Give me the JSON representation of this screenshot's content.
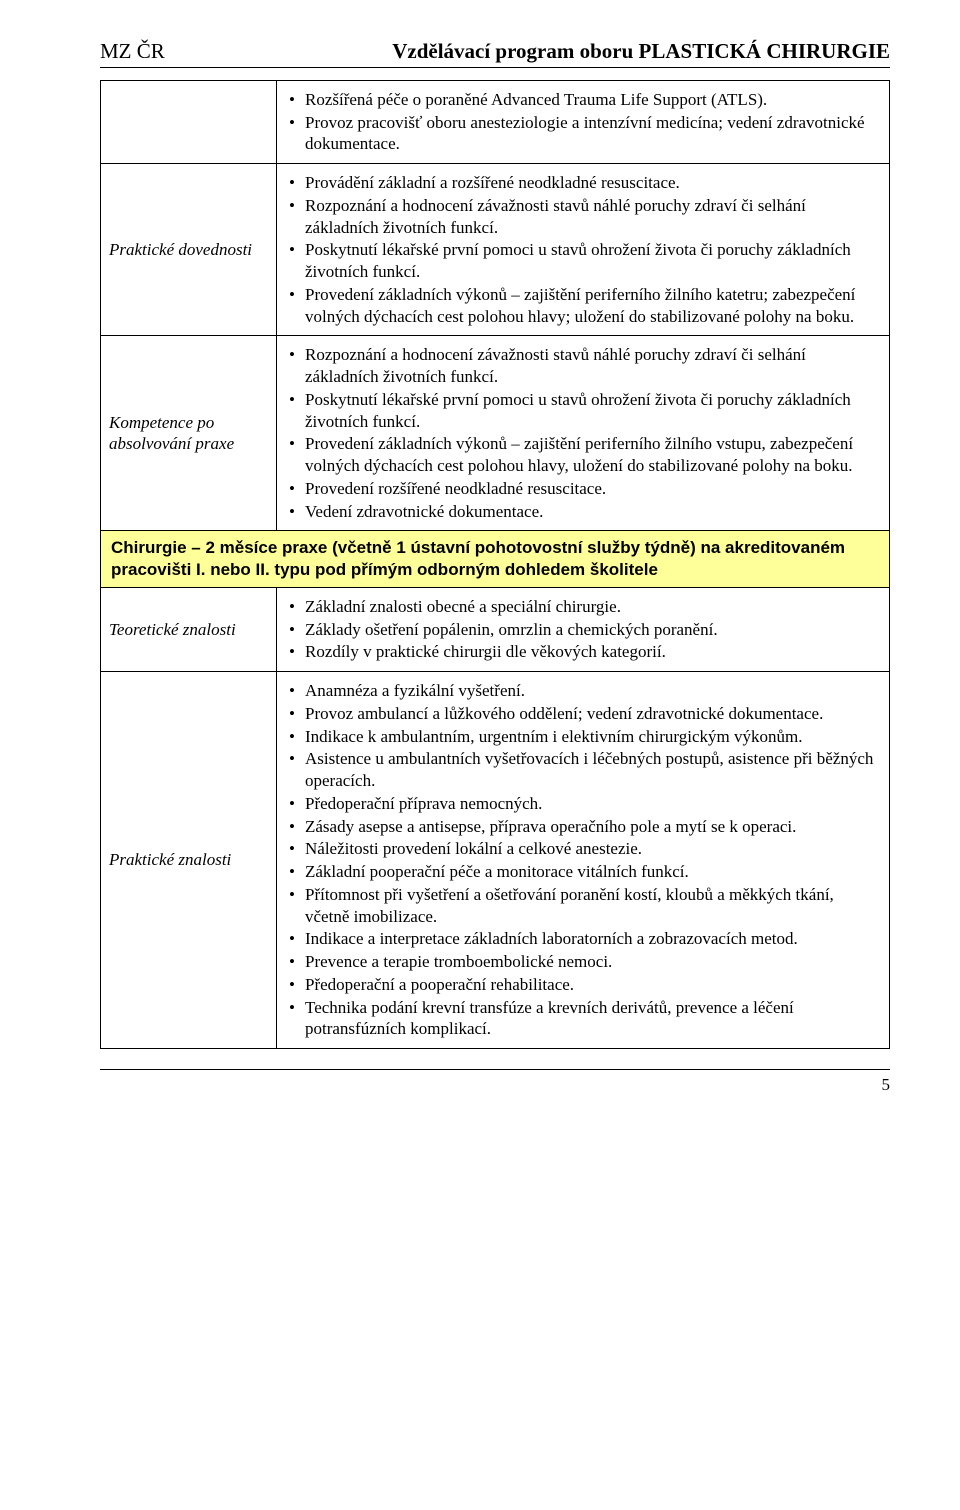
{
  "header": {
    "left": "MZ ČR",
    "right": "Vzdělávací program oboru PLASTICKÁ CHIRURGIE"
  },
  "colors": {
    "highlight_bg": "#ffff99",
    "border": "#000000",
    "text": "#000000",
    "page_bg": "#ffffff"
  },
  "rows": [
    {
      "label": "",
      "items": [
        "Rozšířená péče o poraněné Advanced Trauma Life Support (ATLS).",
        "Provoz pracovišť oboru anesteziologie a intenzívní medicína; vedení zdravotnické dokumentace."
      ]
    },
    {
      "label": "Praktické dovednosti",
      "items": [
        "Provádění základní a rozšířené neodkladné resuscitace.",
        "Rozpoznání a hodnocení závažnosti stavů náhlé poruchy zdraví či selhání základních životních funkcí.",
        "Poskytnutí lékařské první pomoci u stavů ohrožení života či poruchy základních životních funkcí.",
        "Provedení základních výkonů – zajištění periferního žilního katetru; zabezpečení volných dýchacích cest polohou hlavy; uložení do stabilizované polohy na boku."
      ]
    },
    {
      "label": "Kompetence po absolvování praxe",
      "items": [
        "Rozpoznání a hodnocení závažnosti stavů náhlé poruchy zdraví či selhání základních životních funkcí.",
        "Poskytnutí lékařské první pomoci u stavů ohrožení života či poruchy základních životních funkcí.",
        "Provedení základních výkonů – zajištění periferního žilního vstupu, zabezpečení volných dýchacích cest polohou hlavy, uložení do stabilizované polohy na boku.",
        "Provedení rozšířené neodkladné resuscitace.",
        "Vedení zdravotnické dokumentace."
      ]
    }
  ],
  "section_header": "Chirurgie – 2 měsíce praxe (včetně 1 ústavní pohotovostní služby týdně) na akreditovaném pracovišti I. nebo II. typu pod přímým odborným dohledem školitele",
  "rows2": [
    {
      "label": "Teoretické znalosti",
      "items": [
        "Základní znalosti obecné a speciální chirurgie.",
        "Základy ošetření popálenin, omrzlin a chemických poranění.",
        "Rozdíly v praktické chirurgii dle věkových kategorií."
      ]
    },
    {
      "label": "Praktické znalosti",
      "items": [
        "Anamnéza a fyzikální vyšetření.",
        "Provoz ambulancí a lůžkového oddělení; vedení zdravotnické dokumentace.",
        "Indikace k ambulantním, urgentním i elektivním chirurgickým výkonům.",
        "Asistence u ambulantních vyšetřovacích i léčebných postupů, asistence při běžných operacích.",
        "Předoperační příprava nemocných.",
        "Zásady asepse a antisepse, příprava operačního pole a mytí se k operaci.",
        "Náležitosti provedení lokální a celkové anestezie.",
        "Základní pooperační péče a monitorace vitálních funkcí.",
        "Přítomnost při vyšetření a ošetřování poranění kostí, kloubů a měkkých tkání, včetně imobilizace.",
        "Indikace a interpretace základních laboratorních a zobrazovacích metod.",
        "Prevence a terapie tromboembolické nemoci.",
        "Předoperační a pooperační rehabilitace.",
        "Technika podání krevní transfúze a krevních derivátů, prevence a léčení potransfúzních komplikací."
      ]
    }
  ],
  "page_number": "5"
}
